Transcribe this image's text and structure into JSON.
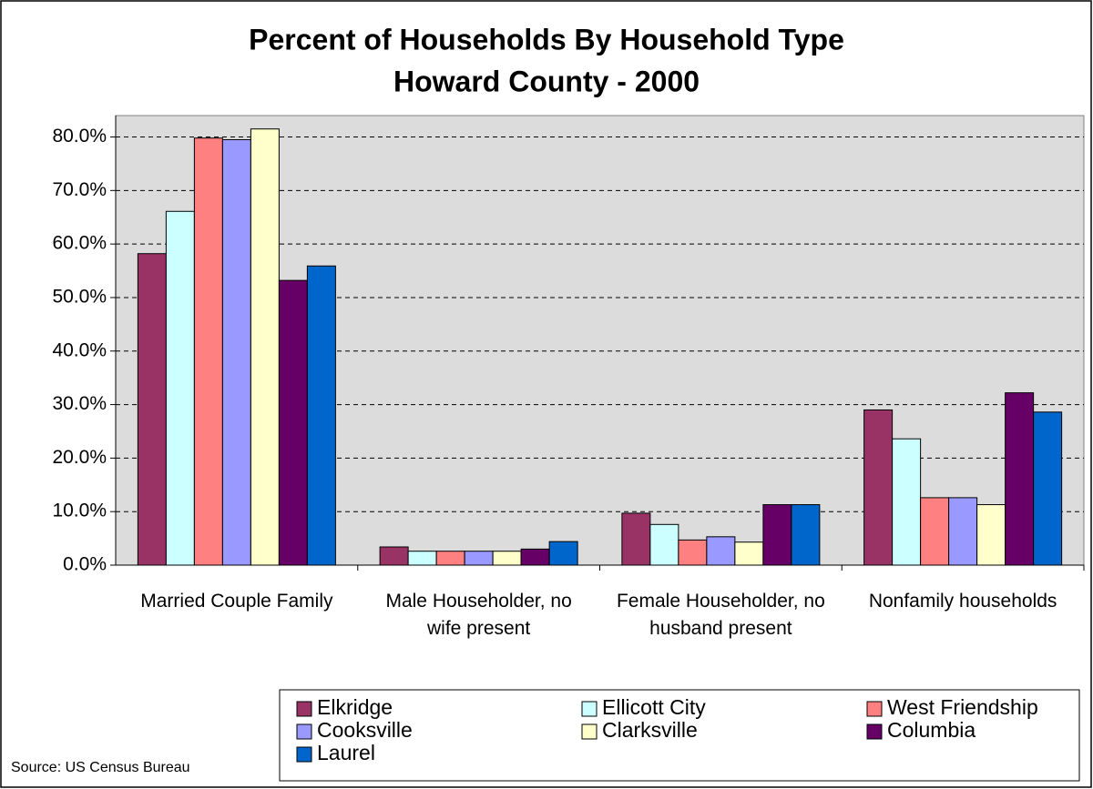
{
  "chart_data": {
    "type": "bar",
    "title": "Percent of Households By Household Type",
    "subtitle": "Howard County - 2000",
    "categories": [
      "Married Couple Family",
      "Male Householder, no wife present",
      "Female Householder, no husband present",
      "Nonfamily households"
    ],
    "series": [
      {
        "name": "Elkridge",
        "color": "#993366",
        "values": [
          58.2,
          3.4,
          9.7,
          29.0
        ]
      },
      {
        "name": "Ellicott City",
        "color": "#ccffff",
        "values": [
          66.1,
          2.6,
          7.6,
          23.6
        ]
      },
      {
        "name": "West Friendship",
        "color": "#ff8080",
        "values": [
          79.8,
          2.6,
          4.7,
          12.6
        ]
      },
      {
        "name": "Cooksville",
        "color": "#9999ff",
        "values": [
          79.5,
          2.6,
          5.3,
          12.6
        ]
      },
      {
        "name": "Clarksville",
        "color": "#ffffcc",
        "values": [
          81.5,
          2.6,
          4.3,
          11.3
        ]
      },
      {
        "name": "Columbia",
        "color": "#660066",
        "values": [
          53.2,
          3.0,
          11.3,
          32.2
        ]
      },
      {
        "name": "Laurel",
        "color": "#0066cc",
        "values": [
          55.9,
          4.4,
          11.3,
          28.6
        ]
      }
    ],
    "ylim": [
      0,
      84
    ],
    "yticks": [
      {
        "value": 0,
        "label": "0.0%"
      },
      {
        "value": 10,
        "label": "10.0%"
      },
      {
        "value": 20,
        "label": "20.0%"
      },
      {
        "value": 30,
        "label": "30.0%"
      },
      {
        "value": 40,
        "label": "40.0%"
      },
      {
        "value": 50,
        "label": "50.0%"
      },
      {
        "value": 60,
        "label": "60.0%"
      },
      {
        "value": 70,
        "label": "70.0%"
      },
      {
        "value": 80,
        "label": "80.0%"
      }
    ],
    "grid": true,
    "legend": "bottom",
    "source": "Source:  US Census Bureau"
  }
}
